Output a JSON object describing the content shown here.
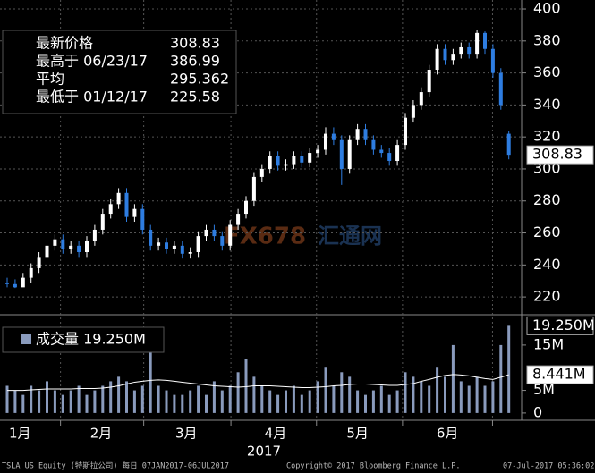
{
  "chart_data": {
    "type": "candlestick",
    "info": [
      {
        "label": "最新价格",
        "value": "308.83"
      },
      {
        "label": "最高于 06/23/17",
        "value": "386.99"
      },
      {
        "label": "平均",
        "value": "295.362"
      },
      {
        "label": "最低于 01/12/17",
        "value": "225.58"
      }
    ],
    "open": [
      229,
      228,
      226,
      232,
      238,
      245,
      252,
      256,
      250,
      252,
      248,
      255,
      262,
      272,
      278,
      285,
      270,
      275,
      262,
      252,
      254,
      250,
      252,
      247,
      248,
      258,
      262,
      258,
      252,
      265,
      272,
      280,
      295,
      300,
      308,
      302,
      303,
      308,
      304,
      310,
      312,
      322,
      318,
      300,
      318,
      325,
      318,
      312,
      310,
      305,
      315,
      332,
      340,
      348,
      362,
      375,
      368,
      372,
      376,
      372,
      385,
      375,
      360,
      322
    ],
    "high": [
      232,
      231,
      235,
      241,
      248,
      255,
      259,
      259,
      255,
      255,
      258,
      265,
      275,
      281,
      288,
      288,
      278,
      278,
      265,
      257,
      257,
      255,
      255,
      251,
      261,
      265,
      265,
      261,
      268,
      275,
      283,
      298,
      303,
      311,
      311,
      306,
      311,
      311,
      313,
      315,
      326,
      326,
      321,
      321,
      328,
      328,
      321,
      315,
      313,
      318,
      335,
      343,
      351,
      365,
      378,
      378,
      375,
      379,
      379,
      386.99,
      386,
      378,
      363,
      324
    ],
    "low": [
      226,
      225.58,
      227,
      229,
      235,
      242,
      249,
      247,
      247,
      245,
      245,
      252,
      259,
      269,
      275,
      267,
      267,
      259,
      249,
      249,
      247,
      247,
      244,
      244,
      245,
      255,
      255,
      249,
      249,
      262,
      269,
      277,
      292,
      297,
      299,
      299,
      300,
      301,
      301,
      307,
      309,
      315,
      290,
      297,
      315,
      315,
      309,
      307,
      302,
      302,
      312,
      329,
      337,
      345,
      359,
      365,
      365,
      369,
      369,
      369,
      372,
      357,
      337,
      306
    ],
    "close": [
      228,
      226,
      232,
      238,
      245,
      252,
      256,
      250,
      252,
      248,
      255,
      262,
      272,
      278,
      285,
      270,
      275,
      262,
      252,
      254,
      250,
      252,
      247,
      248,
      258,
      262,
      258,
      252,
      265,
      272,
      280,
      295,
      300,
      308,
      302,
      303,
      308,
      304,
      310,
      312,
      322,
      318,
      300,
      318,
      325,
      318,
      312,
      310,
      305,
      315,
      332,
      340,
      348,
      362,
      375,
      368,
      372,
      376,
      372,
      385,
      375,
      360,
      340,
      308.83
    ],
    "ylim": [
      210,
      405.6
    ],
    "yticks": [
      220,
      240,
      260,
      280,
      300,
      320,
      340,
      360,
      380,
      400
    ],
    "up_color": "#ffffff",
    "down_color": "#2e7de1",
    "xticks": [
      {
        "value": 1.6,
        "label": "1月"
      },
      {
        "value": 11.8,
        "label": "2月"
      },
      {
        "value": 22.5,
        "label": "3月"
      },
      {
        "value": 33.7,
        "label": "4月"
      },
      {
        "value": 44,
        "label": "5月"
      },
      {
        "value": 55.3,
        "label": "6月"
      }
    ],
    "year_label": "2017",
    "grid": true,
    "volume": {
      "legend": "成交量 19.250M",
      "last_label": "19.250M",
      "ma_label": "8.441M",
      "values": [
        6,
        5,
        4,
        6,
        5,
        7,
        5,
        4,
        5,
        6,
        4,
        5,
        6,
        7,
        8,
        7,
        5,
        6,
        14,
        6,
        5,
        4,
        4,
        5,
        6,
        4,
        7,
        5,
        6,
        9,
        12,
        8,
        6,
        5,
        4,
        5,
        6,
        4,
        5,
        7,
        10,
        6,
        9,
        8,
        5,
        4,
        5,
        6,
        4,
        5,
        9,
        8,
        7,
        6,
        10,
        8,
        15,
        7,
        6,
        8,
        6,
        7,
        15,
        19.25
      ],
      "ma": [
        5,
        5,
        5,
        5.1,
        5.2,
        5.3,
        5.3,
        5.3,
        5.3,
        5.4,
        5.4,
        5.4,
        5.5,
        5.7,
        6,
        6.4,
        6.8,
        7,
        7.2,
        7.3,
        7.2,
        7,
        6.8,
        6.6,
        6.4,
        6.2,
        6,
        5.9,
        5.8,
        5.7,
        5.8,
        6,
        6,
        6,
        5.9,
        5.8,
        5.7,
        5.6,
        5.6,
        5.7,
        5.8,
        6,
        6.1,
        6.3,
        6.4,
        6.4,
        6.3,
        6.2,
        6.1,
        6.1,
        6.3,
        6.5,
        7,
        7.4,
        7.9,
        8.3,
        8.5,
        8.4,
        8.2,
        7.9,
        7.6,
        7.4,
        7.9,
        8.441
      ],
      "color": "#8a9bbd",
      "ma_color": "#ffffff",
      "ylim": [
        -1.6,
        21.1
      ],
      "yticks": [
        {
          "value": 0,
          "label": "0"
        },
        {
          "value": 5,
          "label": "5M"
        },
        {
          "value": 15,
          "label": "15M"
        }
      ]
    },
    "watermark": [
      "FX678",
      "汇通网"
    ],
    "footer": [
      "TSLA US Equity (特斯拉公司)  每日 07JAN2017-06JUL2017",
      "Copyright© 2017 Bloomberg Finance L.P.",
      "07-Jul-2017 05:36:02"
    ]
  }
}
